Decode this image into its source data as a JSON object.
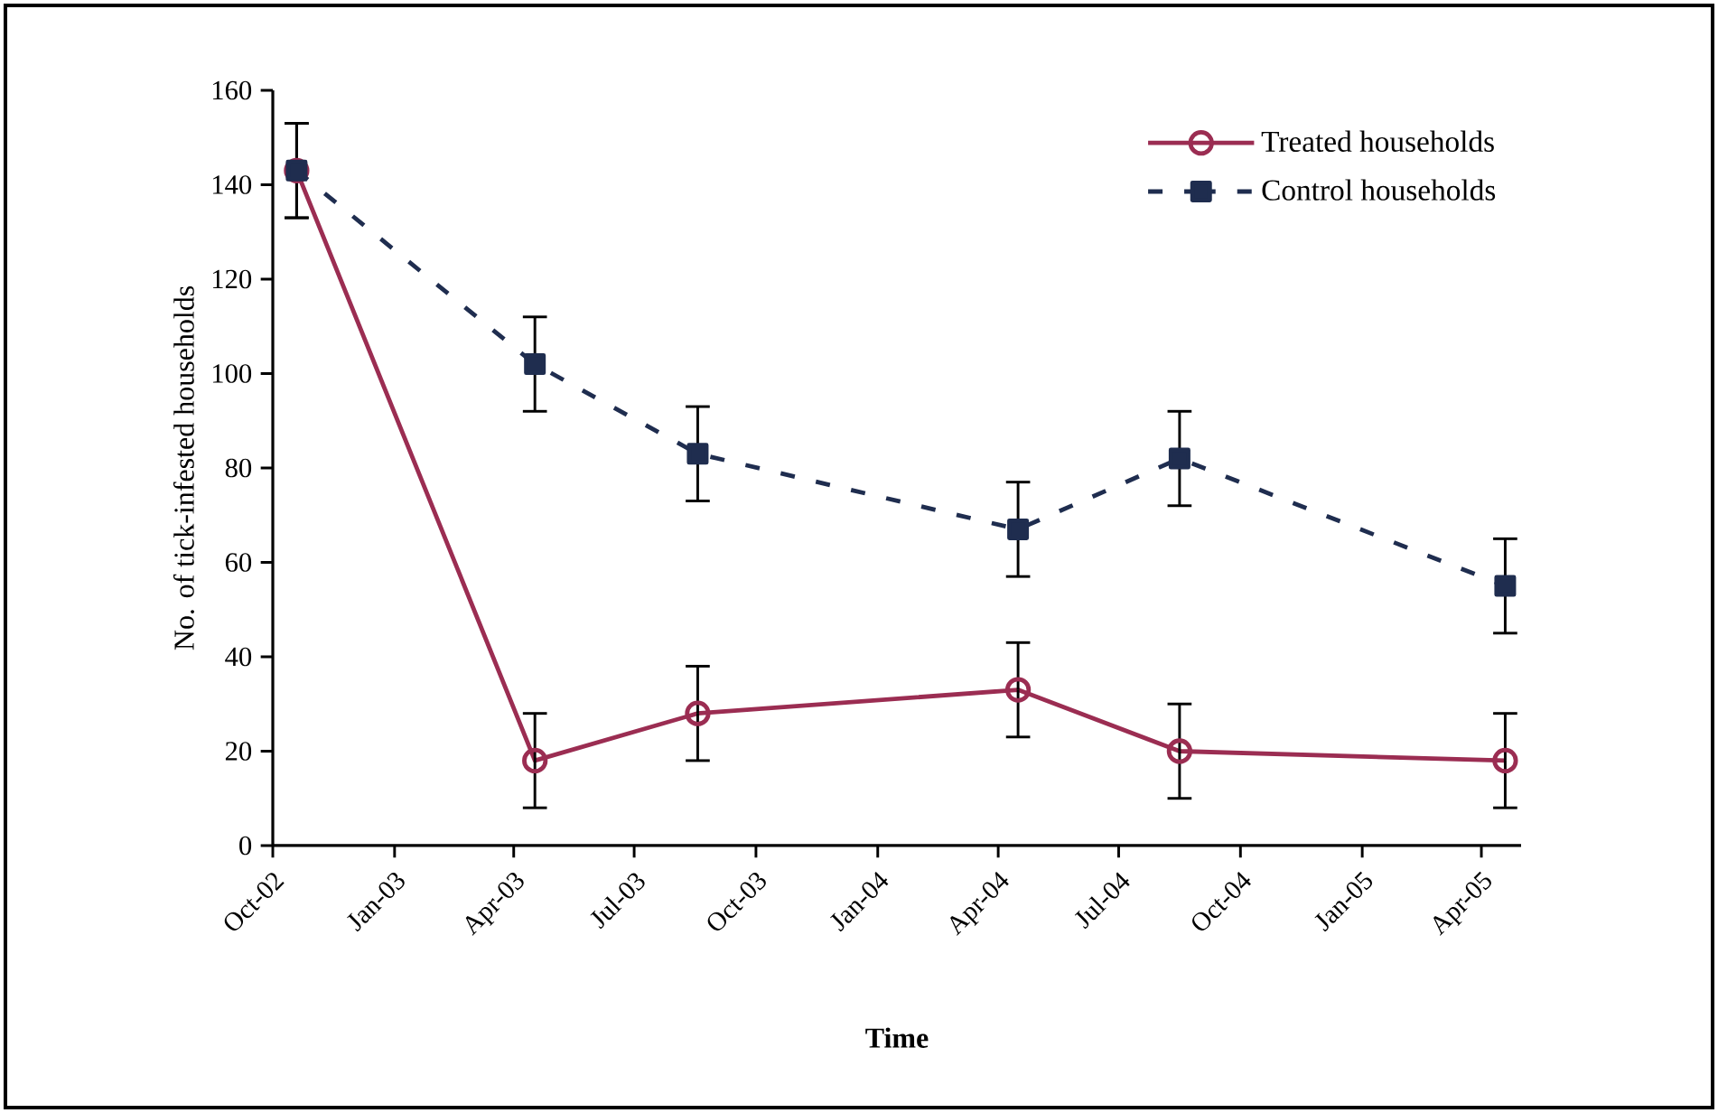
{
  "chart_data": {
    "type": "line",
    "xlabel": "Time",
    "ylabel": "No. of tick-infested households",
    "x": [
      "2002-10-19",
      "2003-04-17",
      "2003-08-18",
      "2004-04-16",
      "2004-08-16",
      "2005-04-19"
    ],
    "series": [
      {
        "name": "Treated households",
        "color": "#9b2d52",
        "values": [
          143,
          18,
          28,
          33,
          20,
          18
        ],
        "errors": [
          10,
          10,
          10,
          10,
          10,
          10
        ],
        "marker": "circle",
        "line_style": "solid"
      },
      {
        "name": "Control households",
        "color": "#1f2d4f",
        "values": [
          143,
          102,
          83,
          67,
          82,
          55
        ],
        "errors": [
          10,
          10,
          10,
          10,
          10,
          10
        ],
        "marker": "square",
        "line_style": "dashed"
      }
    ],
    "xlim": [
      "2002-10-01",
      "2005-05-01"
    ],
    "xticks": [
      {
        "value": "2002-10-01",
        "label": "Oct-02"
      },
      {
        "value": "2003-01-01",
        "label": "Jan-03"
      },
      {
        "value": "2003-04-01",
        "label": "Apr-03"
      },
      {
        "value": "2003-07-01",
        "label": "Jul-03"
      },
      {
        "value": "2003-10-01",
        "label": "Oct-03"
      },
      {
        "value": "2004-01-01",
        "label": "Jan-04"
      },
      {
        "value": "2004-04-01",
        "label": "Apr-04"
      },
      {
        "value": "2004-07-01",
        "label": "Jul-04"
      },
      {
        "value": "2004-10-01",
        "label": "Oct-04"
      },
      {
        "value": "2005-01-01",
        "label": "Jan-05"
      },
      {
        "value": "2005-04-01",
        "label": "Apr-05"
      }
    ],
    "ylim": [
      0,
      160
    ],
    "yticks": [
      0,
      20,
      40,
      60,
      80,
      100,
      120,
      140,
      160
    ],
    "legend": "top right"
  }
}
